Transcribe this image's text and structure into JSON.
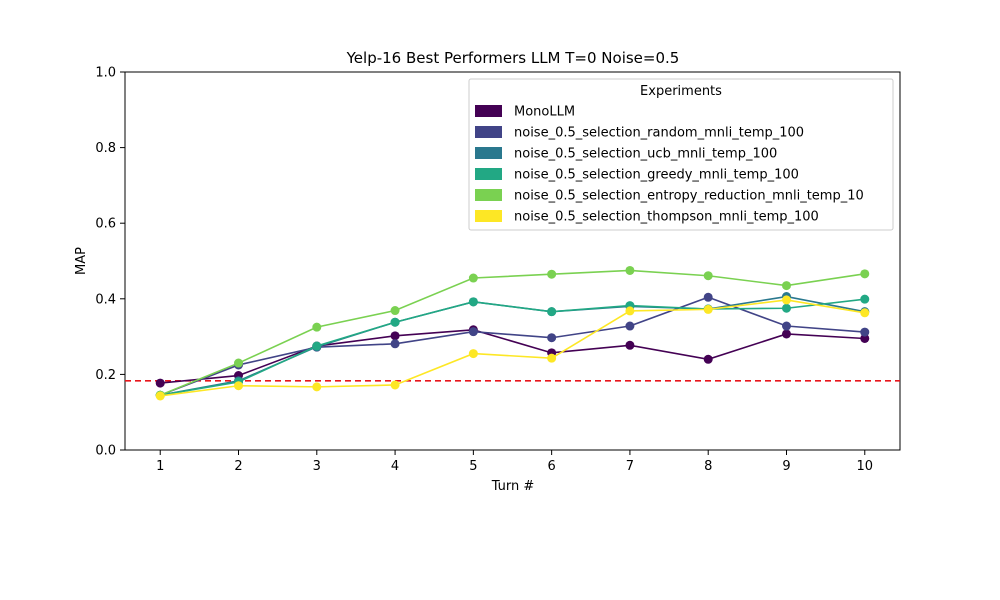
{
  "chart_data": {
    "type": "line",
    "title": "Yelp-16 Best Performers LLM T=0 Noise=0.5",
    "xlabel": "Turn #",
    "ylabel": "MAP",
    "x": [
      1,
      2,
      3,
      4,
      5,
      6,
      7,
      8,
      9,
      10
    ],
    "x_ticks": [
      "1",
      "2",
      "3",
      "4",
      "5",
      "6",
      "7",
      "8",
      "9",
      "10"
    ],
    "xlim": [
      0.55,
      10.45
    ],
    "ylim": [
      0.0,
      1.0
    ],
    "y_ticks": [
      "0.0",
      "0.2",
      "0.4",
      "0.6",
      "0.8",
      "1.0"
    ],
    "grid": false,
    "legend": {
      "title": "Experiments",
      "placement": "top-right"
    },
    "reference_line": {
      "y": 0.183,
      "color": "#e8151b",
      "style": "dashed"
    },
    "series": [
      {
        "name": "MonoLLM",
        "color": "#440154",
        "values": [
          0.177,
          0.197,
          0.275,
          0.302,
          0.318,
          0.257,
          0.277,
          0.24,
          0.307,
          0.295
        ]
      },
      {
        "name": "noise_0.5_selection_random_mnli_temp_100",
        "color": "#414487",
        "values": [
          0.145,
          0.225,
          0.272,
          0.281,
          0.313,
          0.297,
          0.328,
          0.404,
          0.328,
          0.312
        ]
      },
      {
        "name": "noise_0.5_selection_ucb_mnli_temp_100",
        "color": "#2a788e",
        "values": [
          0.145,
          0.183,
          0.273,
          0.338,
          0.392,
          0.366,
          0.38,
          0.373,
          0.406,
          0.366
        ]
      },
      {
        "name": "noise_0.5_selection_greedy_mnli_temp_100",
        "color": "#22a884",
        "values": [
          0.145,
          0.18,
          0.275,
          0.338,
          0.392,
          0.366,
          0.382,
          0.373,
          0.375,
          0.399
        ]
      },
      {
        "name": "noise_0.5_selection_entropy_reduction_mnli_temp_10",
        "color": "#7ad151",
        "values": [
          0.145,
          0.23,
          0.325,
          0.369,
          0.455,
          0.465,
          0.475,
          0.461,
          0.435,
          0.466
        ]
      },
      {
        "name": "noise_0.5_selection_thompson_mnli_temp_100",
        "color": "#fde725",
        "values": [
          0.143,
          0.17,
          0.167,
          0.172,
          0.255,
          0.243,
          0.368,
          0.372,
          0.397,
          0.363
        ]
      }
    ]
  }
}
